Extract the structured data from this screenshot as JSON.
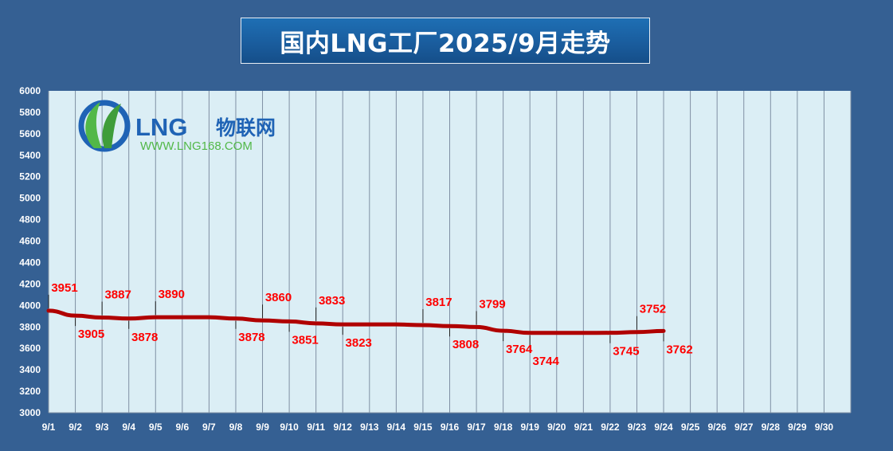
{
  "title": "国内LNG工厂2025/9月走势",
  "logo": {
    "brand": "LNG",
    "cn_name": "物联网",
    "url": "WWW.LNG168.COM",
    "icon": "lng-leaf-logo-icon"
  },
  "colors": {
    "background": "#356093",
    "plot_background": "#dbeef5",
    "line": "#b00000",
    "data_label": "#ff0000",
    "logo_blue": "#1f63b5",
    "logo_green": "#52b848"
  },
  "chart_data": {
    "type": "line",
    "title": "国内LNG工厂2025/9月走势",
    "categories": [
      "9/1",
      "9/2",
      "9/3",
      "9/4",
      "9/5",
      "9/6",
      "9/7",
      "9/8",
      "9/9",
      "9/10",
      "9/11",
      "9/12",
      "9/13",
      "9/14",
      "9/15",
      "9/16",
      "9/17",
      "9/18",
      "9/19",
      "9/20",
      "9/21",
      "9/22",
      "9/23",
      "9/24",
      "9/25",
      "9/26",
      "9/27",
      "9/28",
      "9/29",
      "9/30"
    ],
    "series": [
      {
        "values": [
          3951,
          3905,
          3887,
          3878,
          3890,
          3890,
          3890,
          3878,
          3860,
          3851,
          3833,
          3823,
          3823,
          3823,
          3817,
          3808,
          3799,
          3764,
          3744,
          3744,
          3744,
          3745,
          3752,
          3762,
          null,
          null,
          null,
          null,
          null,
          null
        ]
      }
    ],
    "labels": [
      {
        "index": 0,
        "text": "3951",
        "pos": "above"
      },
      {
        "index": 1,
        "text": "3905",
        "pos": "below"
      },
      {
        "index": 2,
        "text": "3887",
        "pos": "above"
      },
      {
        "index": 3,
        "text": "3878",
        "pos": "below"
      },
      {
        "index": 4,
        "text": "3890",
        "pos": "above"
      },
      {
        "index": 7,
        "text": "3878",
        "pos": "below"
      },
      {
        "index": 8,
        "text": "3860",
        "pos": "above"
      },
      {
        "index": 9,
        "text": "3851",
        "pos": "below"
      },
      {
        "index": 10,
        "text": "3833",
        "pos": "above"
      },
      {
        "index": 11,
        "text": "3823",
        "pos": "below"
      },
      {
        "index": 14,
        "text": "3817",
        "pos": "above"
      },
      {
        "index": 15,
        "text": "3808",
        "pos": "below"
      },
      {
        "index": 16,
        "text": "3799",
        "pos": "above"
      },
      {
        "index": 17,
        "text": "3764",
        "pos": "below"
      },
      {
        "index": 18,
        "text": "3744",
        "pos": "below"
      },
      {
        "index": 21,
        "text": "3745",
        "pos": "below"
      },
      {
        "index": 22,
        "text": "3752",
        "pos": "above"
      },
      {
        "index": 23,
        "text": "3762",
        "pos": "below"
      }
    ],
    "yticks": [
      "3000",
      "3200",
      "3400",
      "3600",
      "3800",
      "4000",
      "4200",
      "4400",
      "4600",
      "4800",
      "5000",
      "5200",
      "5400",
      "5600",
      "5800",
      "6000"
    ],
    "ylim": [
      3000,
      6000
    ],
    "grid": "vertical",
    "legend": "none"
  }
}
